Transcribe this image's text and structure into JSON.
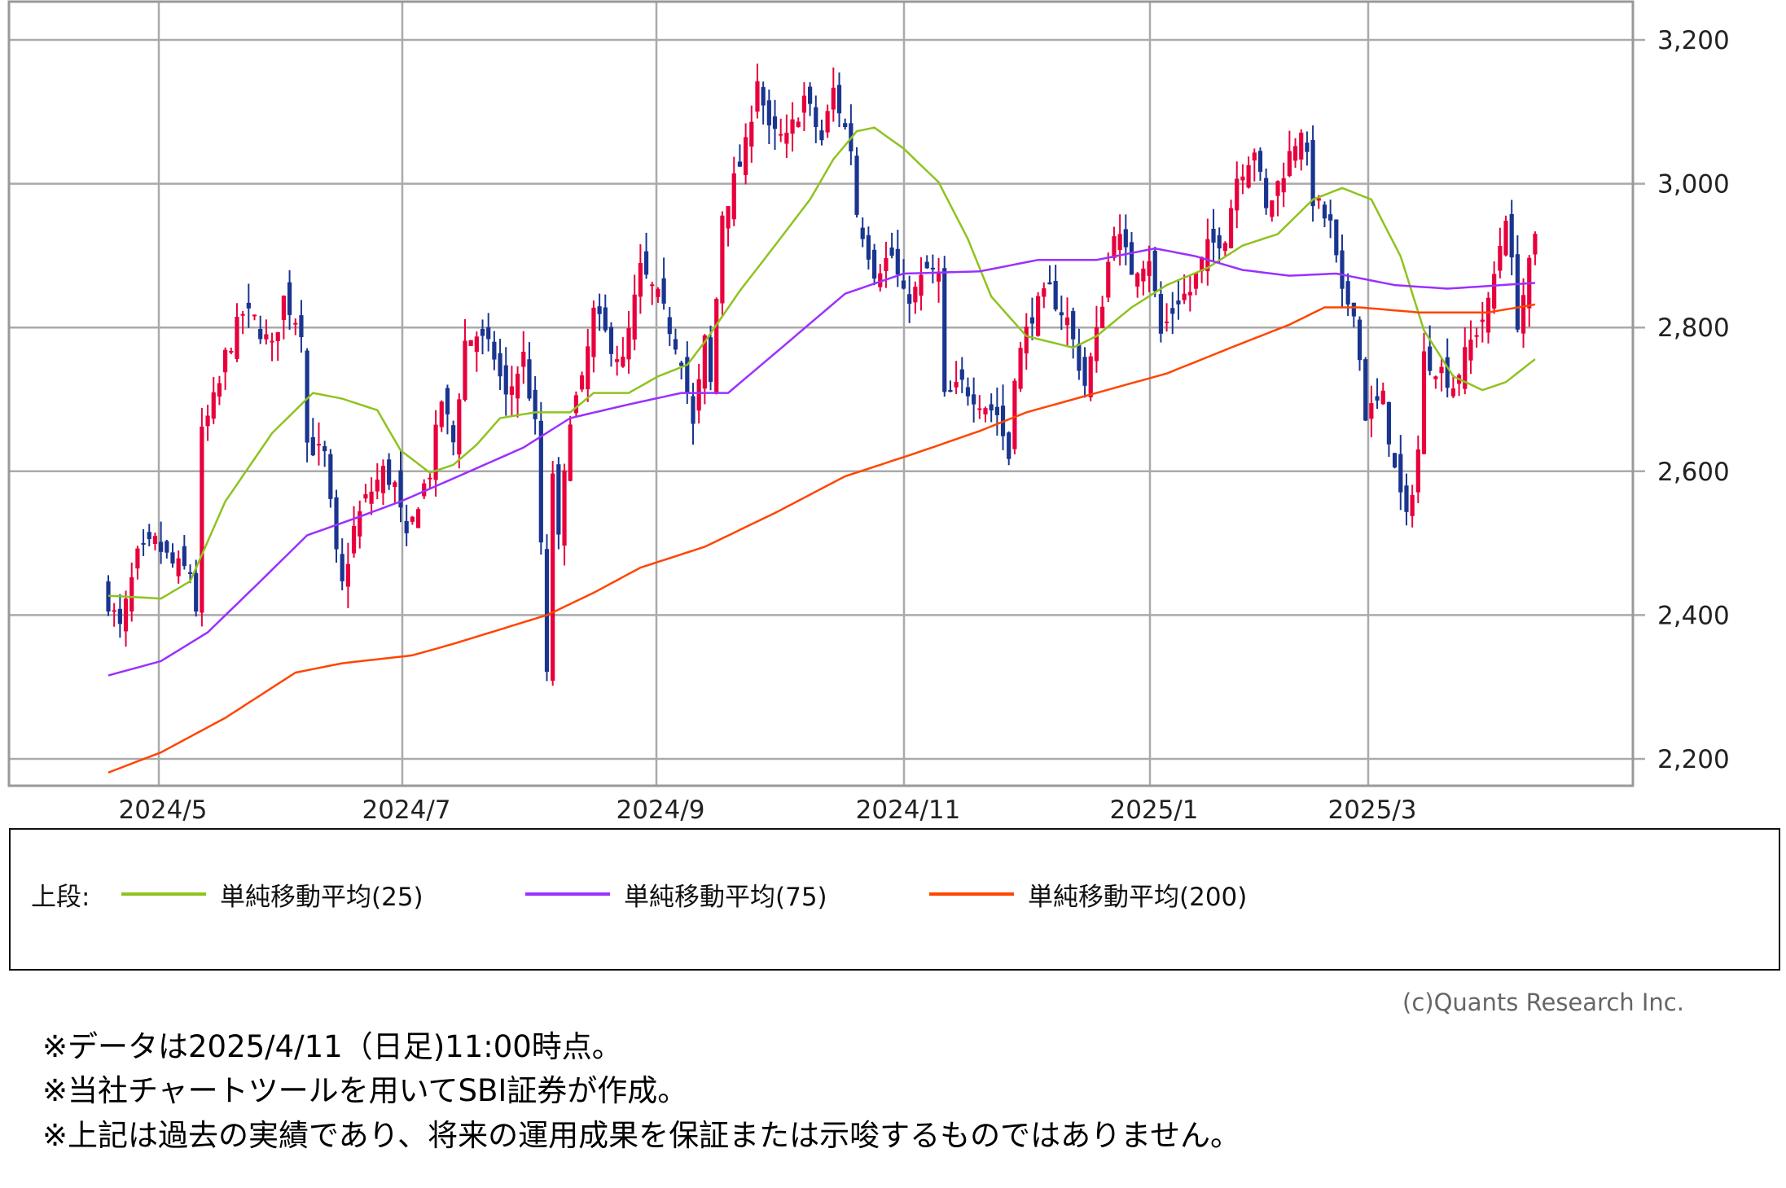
{
  "chart_data": {
    "type": "candlestick",
    "title": "",
    "y_axis": {
      "range": [
        2200,
        3200
      ],
      "ticks": [
        2200,
        2400,
        2600,
        2800,
        3000,
        3200
      ],
      "tick_labels": [
        "2,200",
        "2,400",
        "2,600",
        "2,800",
        "3,000",
        "3,200"
      ],
      "position": "right"
    },
    "x_axis": {
      "tick_labels": [
        "2024/5",
        "2024/7",
        "2024/9",
        "2024/11",
        "2025/1",
        "2025/3"
      ],
      "tick_day_index": [
        8,
        50,
        94,
        137,
        179,
        216
      ]
    },
    "grid": true,
    "num_days": 245,
    "close_anchors": [
      [
        0,
        2420
      ],
      [
        2,
        2380
      ],
      [
        5,
        2480
      ],
      [
        8,
        2500
      ],
      [
        11,
        2470
      ],
      [
        14,
        2460
      ],
      [
        15,
        2410
      ],
      [
        16,
        2650
      ],
      [
        19,
        2720
      ],
      [
        20,
        2760
      ],
      [
        23,
        2820
      ],
      [
        25,
        2810
      ],
      [
        28,
        2770
      ],
      [
        30,
        2840
      ],
      [
        33,
        2800
      ],
      [
        34,
        2640
      ],
      [
        37,
        2620
      ],
      [
        39,
        2480
      ],
      [
        40,
        2440
      ],
      [
        42,
        2520
      ],
      [
        44,
        2560
      ],
      [
        47,
        2600
      ],
      [
        49,
        2580
      ],
      [
        51,
        2500
      ],
      [
        53,
        2560
      ],
      [
        55,
        2600
      ],
      [
        57,
        2700
      ],
      [
        59,
        2640
      ],
      [
        61,
        2780
      ],
      [
        63,
        2790
      ],
      [
        66,
        2760
      ],
      [
        68,
        2700
      ],
      [
        71,
        2760
      ],
      [
        73,
        2660
      ],
      [
        74,
        2500
      ],
      [
        75,
        2310
      ],
      [
        76,
        2600
      ],
      [
        77,
        2500
      ],
      [
        79,
        2680
      ],
      [
        81,
        2720
      ],
      [
        83,
        2820
      ],
      [
        85,
        2790
      ],
      [
        88,
        2750
      ],
      [
        91,
        2880
      ],
      [
        94,
        2840
      ],
      [
        96,
        2800
      ],
      [
        98,
        2760
      ],
      [
        100,
        2660
      ],
      [
        102,
        2780
      ],
      [
        103,
        2720
      ],
      [
        105,
        2960
      ],
      [
        106,
        2980
      ],
      [
        109,
        3050
      ],
      [
        111,
        3150
      ],
      [
        113,
        3070
      ],
      [
        116,
        3060
      ],
      [
        119,
        3120
      ],
      [
        122,
        3060
      ],
      [
        124,
        3130
      ],
      [
        127,
        3050
      ],
      [
        128,
        2960
      ],
      [
        131,
        2880
      ],
      [
        134,
        2900
      ],
      [
        136,
        2840
      ],
      [
        138,
        2850
      ],
      [
        140,
        2880
      ],
      [
        142,
        2870
      ],
      [
        143,
        2700
      ],
      [
        146,
        2720
      ],
      [
        149,
        2700
      ],
      [
        152,
        2680
      ],
      [
        154,
        2620
      ],
      [
        155,
        2740
      ],
      [
        158,
        2820
      ],
      [
        161,
        2850
      ],
      [
        164,
        2810
      ],
      [
        167,
        2720
      ],
      [
        169,
        2790
      ],
      [
        172,
        2940
      ],
      [
        175,
        2880
      ],
      [
        178,
        2900
      ],
      [
        180,
        2790
      ],
      [
        183,
        2840
      ],
      [
        185,
        2850
      ],
      [
        188,
        2910
      ],
      [
        191,
        2930
      ],
      [
        193,
        3010
      ],
      [
        196,
        3050
      ],
      [
        198,
        2960
      ],
      [
        201,
        3020
      ],
      [
        204,
        3080
      ],
      [
        206,
        2980
      ],
      [
        209,
        2940
      ],
      [
        211,
        2840
      ],
      [
        213,
        2830
      ],
      [
        215,
        2680
      ],
      [
        218,
        2700
      ],
      [
        220,
        2600
      ],
      [
        222,
        2530
      ],
      [
        224,
        2630
      ],
      [
        225,
        2760
      ],
      [
        228,
        2740
      ],
      [
        230,
        2720
      ],
      [
        233,
        2780
      ],
      [
        236,
        2830
      ],
      [
        239,
        2960
      ],
      [
        241,
        2810
      ],
      [
        244,
        2920
      ]
    ],
    "series": [
      {
        "name": "単純移動平均(25)",
        "color": "#8fc31f",
        "anchors": [
          [
            0,
            2427
          ],
          [
            9,
            2423
          ],
          [
            14,
            2447
          ],
          [
            20,
            2558
          ],
          [
            28,
            2653
          ],
          [
            35,
            2709
          ],
          [
            40,
            2701
          ],
          [
            46,
            2685
          ],
          [
            50,
            2629
          ],
          [
            55,
            2598
          ],
          [
            59,
            2609
          ],
          [
            63,
            2637
          ],
          [
            67,
            2674
          ],
          [
            73,
            2682
          ],
          [
            79,
            2682
          ],
          [
            83,
            2709
          ],
          [
            89,
            2709
          ],
          [
            94,
            2732
          ],
          [
            99,
            2748
          ],
          [
            102,
            2780
          ],
          [
            108,
            2851
          ],
          [
            114,
            2914
          ],
          [
            120,
            2978
          ],
          [
            124,
            3034
          ],
          [
            128,
            3073
          ],
          [
            131,
            3078
          ],
          [
            136,
            3049
          ],
          [
            142,
            3002
          ],
          [
            147,
            2923
          ],
          [
            151,
            2843
          ],
          [
            157,
            2788
          ],
          [
            165,
            2772
          ],
          [
            169,
            2788
          ],
          [
            175,
            2828
          ],
          [
            181,
            2859
          ],
          [
            188,
            2883
          ],
          [
            194,
            2914
          ],
          [
            200,
            2930
          ],
          [
            206,
            2978
          ],
          [
            211,
            2994
          ],
          [
            216,
            2978
          ],
          [
            221,
            2899
          ],
          [
            225,
            2796
          ],
          [
            230,
            2732
          ],
          [
            235,
            2713
          ],
          [
            239,
            2724
          ],
          [
            244,
            2756
          ]
        ]
      },
      {
        "name": "単純移動平均(75)",
        "color": "#9b30ff",
        "anchors": [
          [
            0,
            2316
          ],
          [
            9,
            2336
          ],
          [
            17,
            2376
          ],
          [
            26,
            2447
          ],
          [
            34,
            2511
          ],
          [
            42,
            2534
          ],
          [
            50,
            2558
          ],
          [
            59,
            2590
          ],
          [
            71,
            2633
          ],
          [
            79,
            2674
          ],
          [
            89,
            2693
          ],
          [
            98,
            2709
          ],
          [
            106,
            2709
          ],
          [
            114,
            2764
          ],
          [
            126,
            2847
          ],
          [
            136,
            2875
          ],
          [
            149,
            2878
          ],
          [
            159,
            2894
          ],
          [
            169,
            2894
          ],
          [
            179,
            2910
          ],
          [
            186,
            2899
          ],
          [
            194,
            2880
          ],
          [
            202,
            2872
          ],
          [
            210,
            2875
          ],
          [
            220,
            2859
          ],
          [
            229,
            2854
          ],
          [
            244,
            2862
          ]
        ]
      },
      {
        "name": "単純移動平均(200)",
        "color": "#ff4500",
        "anchors": [
          [
            0,
            2181
          ],
          [
            9,
            2209
          ],
          [
            20,
            2257
          ],
          [
            32,
            2320
          ],
          [
            40,
            2333
          ],
          [
            52,
            2344
          ],
          [
            59,
            2360
          ],
          [
            75,
            2400
          ],
          [
            83,
            2431
          ],
          [
            91,
            2466
          ],
          [
            102,
            2495
          ],
          [
            114,
            2542
          ],
          [
            126,
            2593
          ],
          [
            138,
            2625
          ],
          [
            149,
            2656
          ],
          [
            157,
            2682
          ],
          [
            169,
            2709
          ],
          [
            181,
            2736
          ],
          [
            192,
            2772
          ],
          [
            202,
            2804
          ],
          [
            208,
            2828
          ],
          [
            214,
            2828
          ],
          [
            224,
            2821
          ],
          [
            236,
            2821
          ],
          [
            244,
            2832
          ]
        ]
      }
    ],
    "up_color": "#e8003c",
    "down_color": "#1a3590"
  },
  "legend": {
    "prefix": "上段:",
    "items": [
      "単純移動平均(25)",
      "単純移動平均(75)",
      "単純移動平均(200)"
    ]
  },
  "copyright": "(c)Quants Research Inc.",
  "notes": [
    "※データは2025/4/11（日足)11:00時点。",
    "※当社チャートツールを用いてSBI証券が作成。",
    "※上記は過去の実績であり、将来の運用成果を保証または示唆するものではありません。"
  ]
}
